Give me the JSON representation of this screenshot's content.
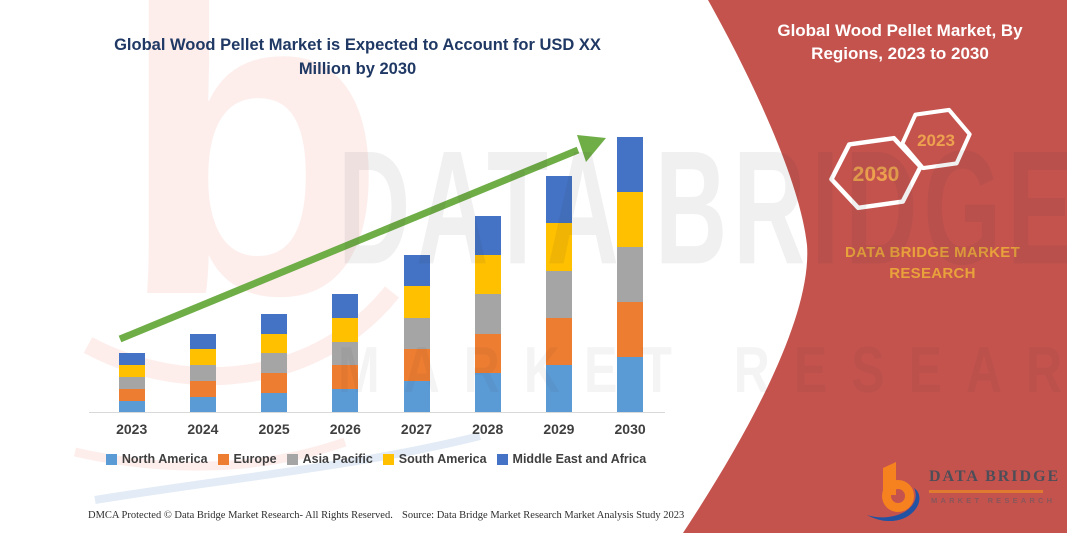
{
  "main_title": {
    "line1": "Global Wood Pellet Market is Expected to Account for USD XX",
    "line2": "Million by 2030",
    "color": "#1F3864"
  },
  "right_panel": {
    "bg_color": "#C4534E",
    "title_line1": "Global Wood Pellet Market, By",
    "title_line2": "Regions, 2023 to 2030",
    "badge_back_label": "2030",
    "badge_front_label": "2023",
    "badge_text_color": "#EDA14E",
    "brand_text": "DATA BRIDGE MARKET RESEARCH",
    "brand_text_color": "#E9A23B"
  },
  "logo": {
    "name_text": "DATA BRIDGE",
    "sub_text": "MARKET RESEARCH",
    "orange": "#F5821F",
    "blue": "#2253A2"
  },
  "watermark": {
    "letter": "b",
    "line1": "DATA BRIDGE",
    "line2": "MARKET RESEARCH"
  },
  "footer": {
    "left": "DMCA Protected © Data Bridge Market Research-  All Rights Reserved.",
    "right": "Source: Data Bridge Market Research  Market Analysis Study 2023"
  },
  "legend": {
    "items": [
      {
        "label": "North America",
        "color": "#5B9BD5"
      },
      {
        "label": "Europe",
        "color": "#ED7D31"
      },
      {
        "label": "Asia Pacific",
        "color": "#A5A5A5"
      },
      {
        "label": "South America",
        "color": "#FFC000"
      },
      {
        "label": "Middle East and Africa",
        "color": "#4472C4"
      }
    ]
  },
  "chart_data": {
    "type": "bar",
    "stacked": true,
    "title": "Global Wood Pellet Market is Expected to Account for USD XX Million by 2030",
    "xlabel": "",
    "ylabel": "",
    "unit": "relative units (axis unlabeled; values shown as USD XX Million)",
    "grid": false,
    "legend_position": "bottom",
    "categories": [
      "2023",
      "2024",
      "2025",
      "2026",
      "2027",
      "2028",
      "2029",
      "2030"
    ],
    "series": [
      {
        "name": "North America",
        "color": "#5B9BD5",
        "values": [
          0.6,
          0.8,
          1.0,
          1.2,
          1.6,
          2.0,
          2.4,
          2.8
        ]
      },
      {
        "name": "Europe",
        "color": "#ED7D31",
        "values": [
          0.6,
          0.8,
          1.0,
          1.2,
          1.6,
          2.0,
          2.4,
          2.8
        ]
      },
      {
        "name": "Asia Pacific",
        "color": "#A5A5A5",
        "values": [
          0.6,
          0.8,
          1.0,
          1.2,
          1.6,
          2.0,
          2.4,
          2.8
        ]
      },
      {
        "name": "South America",
        "color": "#FFC000",
        "values": [
          0.6,
          0.8,
          1.0,
          1.2,
          1.6,
          2.0,
          2.4,
          2.8
        ]
      },
      {
        "name": "Middle East and Africa",
        "color": "#4472C4",
        "values": [
          0.6,
          0.8,
          1.0,
          1.2,
          1.6,
          2.0,
          2.4,
          2.8
        ]
      }
    ],
    "stack_totals": [
      3,
      4,
      5,
      6,
      8,
      10,
      12,
      14
    ],
    "trend_arrow": {
      "present": true,
      "color": "#6FAD47",
      "direction": "up-right"
    }
  }
}
